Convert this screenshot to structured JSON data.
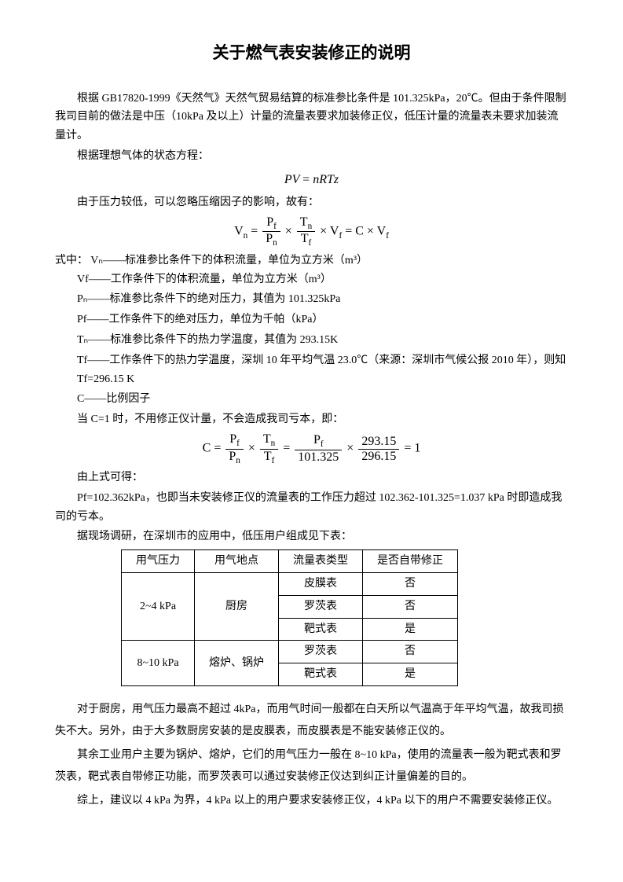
{
  "title": "关于燃气表安装修正的说明",
  "p1": "根据 GB17820-1999《天然气》天然气贸易结算的标准参比条件是 101.325kPa，20℃。但由于条件限制我司目前的做法是中压（10kPa 及以上）计量的流量表要求加装修正仪，低压计量的流量表未要求加装流量计。",
  "p2": "根据理想气体的状态方程：",
  "eq1_left": "PV",
  "eq1_right": "nRTz",
  "p3": "由于压力较低，可以忽略压缩因子的影响，故有：",
  "eq2_var": "V",
  "eq2_n": "n",
  "eq2_Pf": "P",
  "eq2_f": "f",
  "eq2_Pn": "P",
  "eq2_Tn": "T",
  "eq2_Tf": "T",
  "eq2_Vf": "V",
  "eq2_C": "C",
  "def_intro": "式中：",
  "def1": "Vₙ——标准参比条件下的体积流量，单位为立方米（m³）",
  "def2": "Vf——工作条件下的体积流量，单位为立方米（m³）",
  "def3": "Pₙ——标准参比条件下的绝对压力，其值为 101.325kPa",
  "def4": "Pf——工作条件下的绝对压力，单位为千帕（kPa）",
  "def5": "Tₙ——标准参比条件下的热力学温度，其值为 293.15K",
  "def6": "Tf——工作条件下的热力学温度，深圳 10 年平均气温 23.0℃（来源：深圳市气候公报 2010 年），则知 Tf=296.15 K",
  "def7": "C——比例因子",
  "p4": "当 C=1 时，不用修正仪计量，不会造成我司亏本，即：",
  "eq3_num1": "101.325",
  "eq3_num2": "293.15",
  "eq3_num3": "296.15",
  "eq3_one": "1",
  "p5": "由上式可得：",
  "p6": "Pf=102.362kPa，也即当未安装修正仪的流量表的工作压力超过 102.362-101.325=1.037 kPa 时即造成我司的亏本。",
  "p7": "据现场调研，在深圳市的应用中，低压用户组成见下表：",
  "table": {
    "headers": [
      "用气压力",
      "用气地点",
      "流量表类型",
      "是否自带修正"
    ],
    "rows": [
      {
        "pressure": "2~4 kPa",
        "location": "厨房",
        "meters": [
          {
            "type": "皮膜表",
            "correct": "否"
          },
          {
            "type": "罗茨表",
            "correct": "否"
          },
          {
            "type": "靶式表",
            "correct": "是"
          }
        ]
      },
      {
        "pressure": "8~10 kPa",
        "location": "熔炉、锅炉",
        "meters": [
          {
            "type": "罗茨表",
            "correct": "否"
          },
          {
            "type": "靶式表",
            "correct": "是"
          }
        ]
      }
    ]
  },
  "p8": "对于厨房，用气压力最高不超过 4kPa，而用气时间一般都在白天所以气温高于年平均气温，故我司损失不大。另外，由于大多数厨房安装的是皮膜表，而皮膜表是不能安装修正仪的。",
  "p9": "其余工业用户主要为锅炉、熔炉，它们的用气压力一般在 8~10 kPa，使用的流量表一般为靶式表和罗茨表，靶式表自带修正功能，而罗茨表可以通过安装修正仪达到纠正计量偏差的目的。",
  "p10": "综上，建议以 4 kPa 为界，4 kPa 以上的用户要求安装修正仪，4 kPa 以下的用户不需要安装修正仪。"
}
